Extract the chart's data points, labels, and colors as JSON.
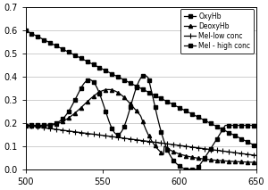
{
  "xlim": [
    500,
    650
  ],
  "ylim": [
    0,
    0.7
  ],
  "xticks": [
    500,
    550,
    600,
    650
  ],
  "yticks": [
    0,
    0.1,
    0.2,
    0.3,
    0.4,
    0.5,
    0.6,
    0.7
  ],
  "legend_labels": [
    "OxyHb",
    "DeoxyHb",
    "Mel-low conc",
    "Mel - high conc"
  ],
  "background_color": "#ffffff",
  "marker_step": 8,
  "marker_size": 3.0,
  "linewidth": 0.9
}
